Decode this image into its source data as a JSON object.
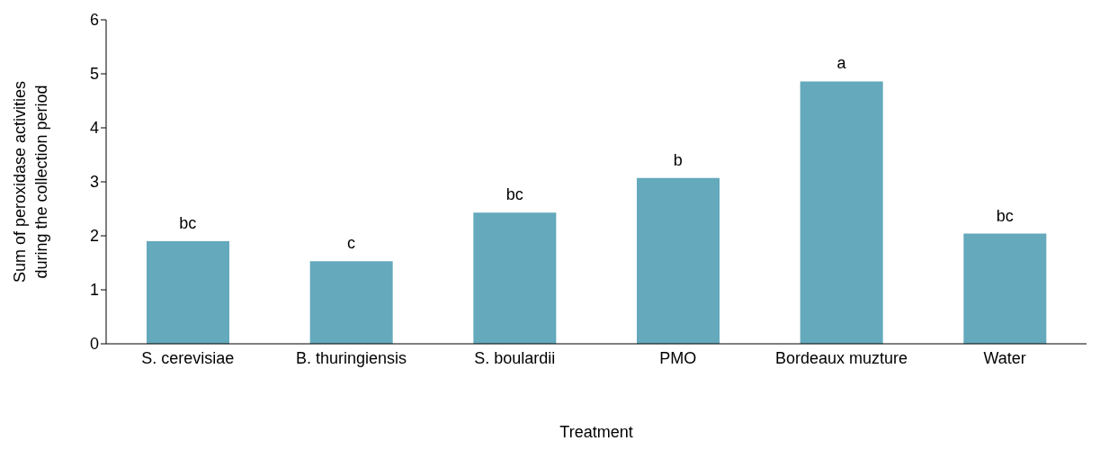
{
  "chart_data": {
    "type": "bar",
    "xlabel": "Treatment",
    "ylabel": "Sum of peroxidase activities during the collection period",
    "categories": [
      "S. cerevisiae",
      "B. thuringiensis",
      "S. boulardii",
      "PMO",
      "Bordeaux muzture",
      "Water"
    ],
    "values": [
      1.9,
      1.53,
      2.43,
      3.07,
      4.86,
      2.04
    ],
    "color": "#64a9bc",
    "ylim": [
      0,
      6
    ],
    "yticks": [
      0,
      1,
      2,
      3,
      4,
      5,
      6
    ],
    "grid": false,
    "legend": false,
    "annotations": [
      {
        "text": "bc",
        "x": "S. cerevisiae",
        "y": 1.9
      },
      {
        "text": "c",
        "x": "B. thuringiensis",
        "y": 1.53
      },
      {
        "text": "bc",
        "x": "S. boulardii",
        "y": 2.43
      },
      {
        "text": "b",
        "x": "PMO",
        "y": 3.07
      },
      {
        "text": "a",
        "x": "Bordeaux muzture",
        "y": 4.86
      },
      {
        "text": "bc",
        "x": "Water",
        "y": 2.04
      }
    ]
  }
}
